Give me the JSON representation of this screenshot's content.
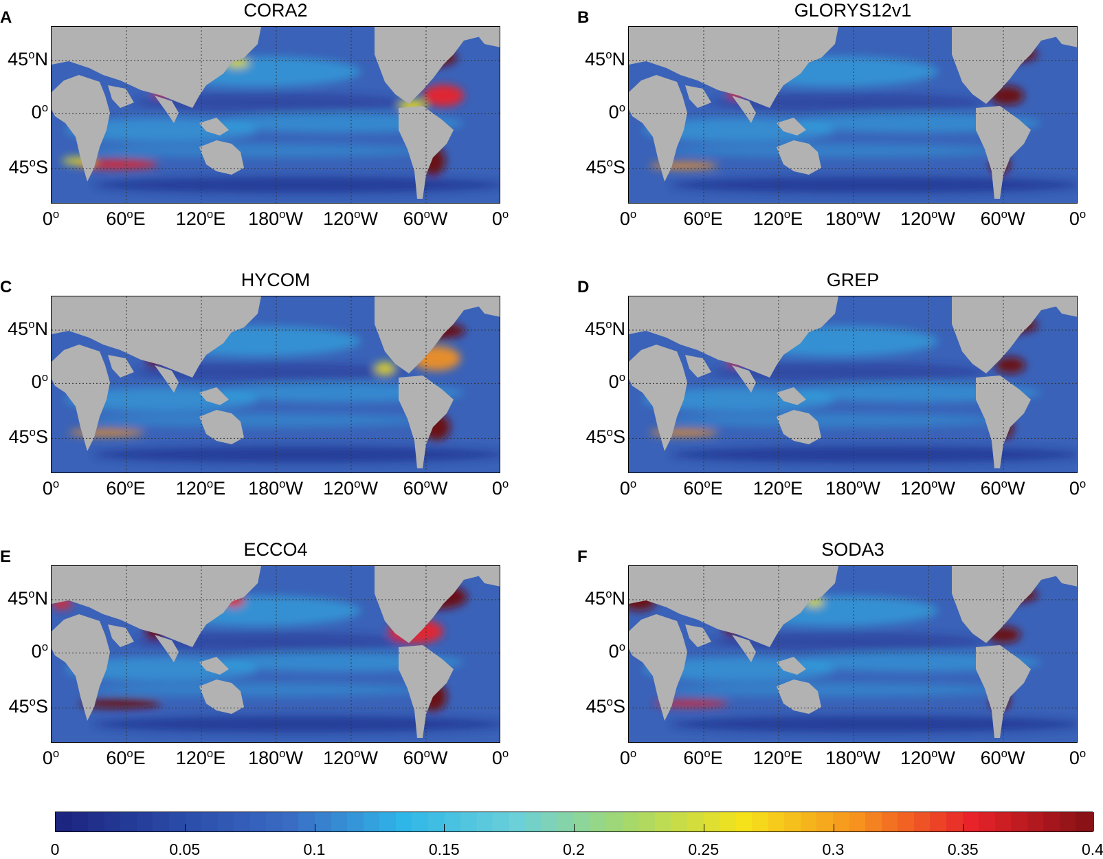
{
  "chart_data": [
    {
      "type": "heatmap",
      "letter": "A",
      "title": "CORA2"
    },
    {
      "type": "heatmap",
      "letter": "B",
      "title": "GLORYS12v1"
    },
    {
      "type": "heatmap",
      "letter": "C",
      "title": "HYCOM"
    },
    {
      "type": "heatmap",
      "letter": "D",
      "title": "GREP"
    },
    {
      "type": "heatmap",
      "letter": "E",
      "title": "ECCO4"
    },
    {
      "type": "heatmap",
      "letter": "F",
      "title": "SODA3"
    }
  ],
  "axes": {
    "x_ticks": [
      {
        "deg": "0",
        "sym": "o",
        "hemi": ""
      },
      {
        "deg": "60",
        "sym": "o",
        "hemi": "E"
      },
      {
        "deg": "120",
        "sym": "o",
        "hemi": "E"
      },
      {
        "deg": "180",
        "sym": "o",
        "hemi": "W"
      },
      {
        "deg": "120",
        "sym": "o",
        "hemi": "W"
      },
      {
        "deg": "60",
        "sym": "o",
        "hemi": "W"
      },
      {
        "deg": "0",
        "sym": "o",
        "hemi": ""
      }
    ],
    "y_ticks": [
      {
        "deg": "45",
        "sym": "o",
        "hemi": "N"
      },
      {
        "deg": "0",
        "sym": "o",
        "hemi": ""
      },
      {
        "deg": "45",
        "sym": "o",
        "hemi": "S"
      }
    ],
    "xlim": [
      0,
      360
    ],
    "ylim": [
      -70,
      70
    ]
  },
  "colorbar": {
    "range": [
      0,
      0.4
    ],
    "ticks": [
      "0",
      "0.05",
      "0.1",
      "0.15",
      "0.2",
      "0.25",
      "0.3",
      "0.35",
      "0.4"
    ],
    "colormap": "jet",
    "colors": {
      "dark_blue": "#1f2f8c",
      "blue": "#3a62b8",
      "cyan": "#2fb6e8",
      "green": "#8ccf7a",
      "yellow": "#f5e21a",
      "orange": "#f7921e",
      "red": "#e8232a",
      "dark_red": "#6b0f12",
      "land": "#b2b2b2"
    }
  }
}
